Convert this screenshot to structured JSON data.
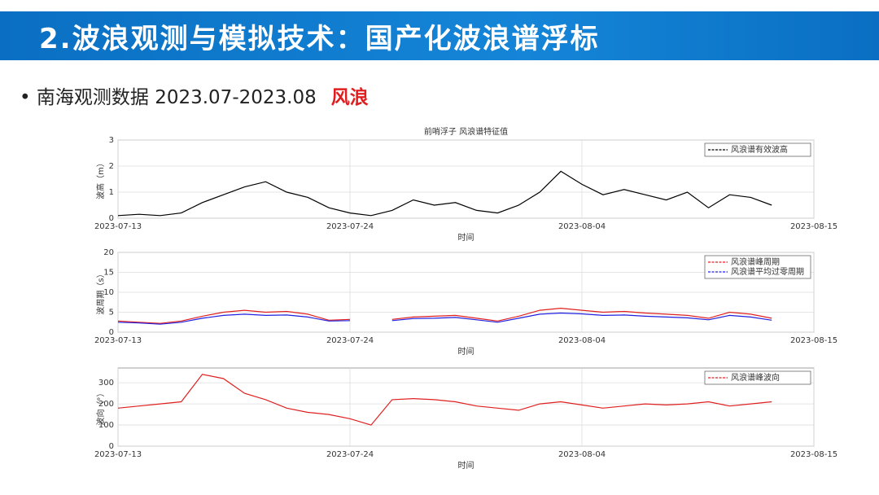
{
  "slide": {
    "title": "2.波浪观测与模拟技术：国产化波浪谱浮标",
    "bullet": "南海观测数据 2023.07-2023.08",
    "highlight": "风浪"
  },
  "chart_data": [
    {
      "type": "line",
      "title": "前哨浮子 风浪谱特征值",
      "ylabel": "波高（m）",
      "xlabel": "时间",
      "x": [
        "2023-07-13",
        "2023-07-14",
        "2023-07-15",
        "2023-07-16",
        "2023-07-17",
        "2023-07-18",
        "2023-07-19",
        "2023-07-20",
        "2023-07-21",
        "2023-07-22",
        "2023-07-23",
        "2023-07-24",
        "2023-07-25",
        "2023-07-26",
        "2023-07-27",
        "2023-07-28",
        "2023-07-29",
        "2023-07-30",
        "2023-07-31",
        "2023-08-01",
        "2023-08-02",
        "2023-08-03",
        "2023-08-04",
        "2023-08-05",
        "2023-08-06",
        "2023-08-07",
        "2023-08-08",
        "2023-08-09",
        "2023-08-10",
        "2023-08-11",
        "2023-08-12",
        "2023-08-13",
        "2023-08-14"
      ],
      "series": [
        {
          "name": "风浪谱有效波高",
          "color": "#000000",
          "values": [
            0.1,
            0.15,
            0.1,
            0.2,
            0.6,
            0.9,
            1.2,
            1.4,
            1.0,
            0.8,
            0.4,
            0.2,
            0.1,
            0.3,
            0.7,
            0.5,
            0.6,
            0.3,
            0.2,
            0.5,
            1.0,
            1.8,
            1.3,
            0.9,
            1.1,
            0.9,
            0.7,
            1.0,
            0.4,
            0.9,
            0.8,
            0.5,
            null
          ]
        }
      ],
      "xlim": [
        "2023-07-13",
        "2023-08-15"
      ],
      "xticks": [
        "2023-07-13",
        "2023-07-24",
        "2023-08-04",
        "2023-08-15"
      ],
      "ylim": [
        0,
        3
      ],
      "yticks": [
        0,
        1,
        2,
        3
      ],
      "grid": true,
      "legend": "upper right"
    },
    {
      "type": "line",
      "ylabel": "波周期（s）",
      "xlabel": "时间",
      "x": [
        "2023-07-13",
        "2023-07-14",
        "2023-07-15",
        "2023-07-16",
        "2023-07-17",
        "2023-07-18",
        "2023-07-19",
        "2023-07-20",
        "2023-07-21",
        "2023-07-22",
        "2023-07-23",
        "2023-07-24",
        "2023-07-25",
        "2023-07-26",
        "2023-07-27",
        "2023-07-28",
        "2023-07-29",
        "2023-07-30",
        "2023-07-31",
        "2023-08-01",
        "2023-08-02",
        "2023-08-03",
        "2023-08-04",
        "2023-08-05",
        "2023-08-06",
        "2023-08-07",
        "2023-08-08",
        "2023-08-09",
        "2023-08-10",
        "2023-08-11",
        "2023-08-12",
        "2023-08-13",
        "2023-08-14"
      ],
      "series": [
        {
          "name": "风浪谱峰周期",
          "color": "#e02020",
          "values": [
            2.8,
            2.5,
            2.2,
            2.8,
            4.0,
            5.0,
            5.5,
            5.0,
            5.2,
            4.5,
            3.0,
            3.2,
            null,
            3.2,
            3.8,
            4.0,
            4.2,
            3.5,
            2.8,
            4.0,
            5.5,
            6.0,
            5.5,
            5.0,
            5.2,
            4.8,
            4.5,
            4.2,
            3.5,
            5.0,
            4.5,
            3.5,
            null
          ]
        },
        {
          "name": "风浪谱平均过零周期",
          "color": "#2020e0",
          "values": [
            2.5,
            2.3,
            2.0,
            2.5,
            3.5,
            4.2,
            4.5,
            4.2,
            4.3,
            3.8,
            2.8,
            2.9,
            null,
            2.9,
            3.4,
            3.5,
            3.7,
            3.1,
            2.5,
            3.5,
            4.5,
            4.8,
            4.6,
            4.2,
            4.3,
            4.0,
            3.8,
            3.6,
            3.1,
            4.2,
            3.8,
            3.0,
            null
          ]
        }
      ],
      "xlim": [
        "2023-07-13",
        "2023-08-15"
      ],
      "xticks": [
        "2023-07-13",
        "2023-07-24",
        "2023-08-04",
        "2023-08-15"
      ],
      "ylim": [
        0,
        20
      ],
      "yticks": [
        0,
        5,
        10,
        15,
        20
      ],
      "grid": true,
      "legend": "upper right"
    },
    {
      "type": "line",
      "ylabel": "波向（°）",
      "xlabel": "时间",
      "x": [
        "2023-07-13",
        "2023-07-14",
        "2023-07-15",
        "2023-07-16",
        "2023-07-17",
        "2023-07-18",
        "2023-07-19",
        "2023-07-20",
        "2023-07-21",
        "2023-07-22",
        "2023-07-23",
        "2023-07-24",
        "2023-07-25",
        "2023-07-26",
        "2023-07-27",
        "2023-07-28",
        "2023-07-29",
        "2023-07-30",
        "2023-07-31",
        "2023-08-01",
        "2023-08-02",
        "2023-08-03",
        "2023-08-04",
        "2023-08-05",
        "2023-08-06",
        "2023-08-07",
        "2023-08-08",
        "2023-08-09",
        "2023-08-10",
        "2023-08-11",
        "2023-08-12",
        "2023-08-13",
        "2023-08-14"
      ],
      "series": [
        {
          "name": "风浪谱峰波向",
          "color": "#e02020",
          "values": [
            180,
            190,
            200,
            210,
            340,
            320,
            250,
            220,
            180,
            160,
            150,
            130,
            100,
            220,
            225,
            220,
            210,
            190,
            180,
            170,
            200,
            210,
            195,
            180,
            190,
            200,
            195,
            200,
            210,
            190,
            200,
            210,
            null
          ]
        }
      ],
      "xlim": [
        "2023-07-13",
        "2023-08-15"
      ],
      "xticks": [
        "2023-07-13",
        "2023-07-24",
        "2023-08-04",
        "2023-08-15"
      ],
      "ylim": [
        0,
        370
      ],
      "yticks": [
        0,
        100,
        200,
        300
      ],
      "grid": true,
      "legend": "upper right"
    }
  ]
}
